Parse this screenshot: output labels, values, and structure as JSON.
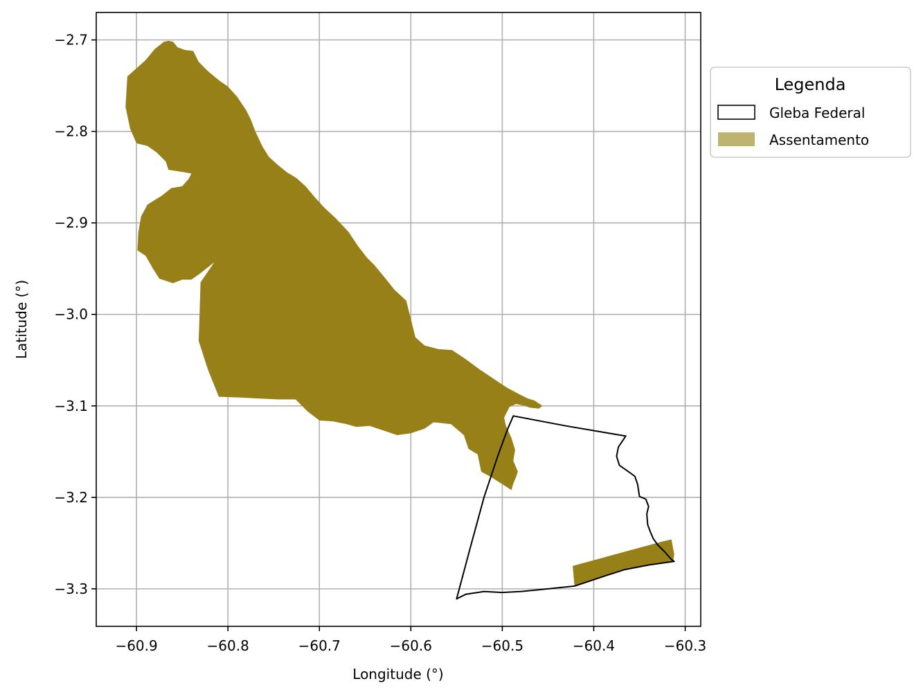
{
  "chart_data": {
    "type": "map",
    "xlabel": "Longitude (°)",
    "ylabel": "Latitude (°)",
    "xlim": [
      -60.944,
      -60.283
    ],
    "ylim": [
      -3.341,
      -2.67
    ],
    "xticks": [
      {
        "value": -60.9,
        "label": "−60.9"
      },
      {
        "value": -60.8,
        "label": "−60.8"
      },
      {
        "value": -60.7,
        "label": "−60.7"
      },
      {
        "value": -60.6,
        "label": "−60.6"
      },
      {
        "value": -60.5,
        "label": "−60.5"
      },
      {
        "value": -60.4,
        "label": "−60.4"
      },
      {
        "value": -60.3,
        "label": "−60.3"
      }
    ],
    "yticks": [
      {
        "value": -2.7,
        "label": "−2.7"
      },
      {
        "value": -2.8,
        "label": "−2.8"
      },
      {
        "value": -2.9,
        "label": "−2.9"
      },
      {
        "value": -3.0,
        "label": "−3.0"
      },
      {
        "value": -3.1,
        "label": "−3.1"
      },
      {
        "value": -3.2,
        "label": "−3.2"
      },
      {
        "value": -3.3,
        "label": "−3.3"
      }
    ],
    "grid": true,
    "legend": {
      "title": "Legenda",
      "placement": "outside-upper-right",
      "entries": [
        {
          "label": "Gleba Federal",
          "style": "outline",
          "color": "#000000"
        },
        {
          "label": "Assentamento",
          "style": "fill",
          "color": "#bfb372"
        }
      ]
    },
    "layers": [
      {
        "name": "Assentamento",
        "color": "#978018",
        "polygons": [
          [
            [
              -60.865,
              -2.701
            ],
            [
              -60.86,
              -2.702
            ],
            [
              -60.855,
              -2.708
            ],
            [
              -60.847,
              -2.711
            ],
            [
              -60.838,
              -2.712
            ],
            [
              -60.832,
              -2.724
            ],
            [
              -60.822,
              -2.734
            ],
            [
              -60.81,
              -2.744
            ],
            [
              -60.8,
              -2.751
            ],
            [
              -60.79,
              -2.762
            ],
            [
              -60.78,
              -2.777
            ],
            [
              -60.775,
              -2.787
            ],
            [
              -60.77,
              -2.8
            ],
            [
              -60.762,
              -2.817
            ],
            [
              -60.755,
              -2.828
            ],
            [
              -60.745,
              -2.837
            ],
            [
              -60.735,
              -2.845
            ],
            [
              -60.725,
              -2.851
            ],
            [
              -60.715,
              -2.86
            ],
            [
              -60.705,
              -2.872
            ],
            [
              -60.695,
              -2.883
            ],
            [
              -60.682,
              -2.895
            ],
            [
              -60.668,
              -2.91
            ],
            [
              -60.658,
              -2.925
            ],
            [
              -60.648,
              -2.938
            ],
            [
              -60.64,
              -2.946
            ],
            [
              -60.63,
              -2.958
            ],
            [
              -60.618,
              -2.973
            ],
            [
              -60.605,
              -2.985
            ],
            [
              -60.6,
              -3.005
            ],
            [
              -60.595,
              -3.025
            ],
            [
              -60.585,
              -3.034
            ],
            [
              -60.57,
              -3.038
            ],
            [
              -60.555,
              -3.039
            ],
            [
              -60.54,
              -3.049
            ],
            [
              -60.525,
              -3.06
            ],
            [
              -60.51,
              -3.07
            ],
            [
              -60.495,
              -3.08
            ],
            [
              -60.482,
              -3.087
            ],
            [
              -60.472,
              -3.092
            ],
            [
              -60.465,
              -3.094
            ],
            [
              -60.456,
              -3.1
            ],
            [
              -60.46,
              -3.103
            ],
            [
              -60.47,
              -3.102
            ],
            [
              -60.475,
              -3.1
            ],
            [
              -60.485,
              -3.098
            ],
            [
              -60.492,
              -3.101
            ],
            [
              -60.498,
              -3.113
            ],
            [
              -60.496,
              -3.122
            ],
            [
              -60.49,
              -3.135
            ],
            [
              -60.486,
              -3.148
            ],
            [
              -60.488,
              -3.16
            ],
            [
              -60.483,
              -3.172
            ],
            [
              -60.485,
              -3.178
            ],
            [
              -60.488,
              -3.185
            ],
            [
              -60.49,
              -3.192
            ],
            [
              -60.501,
              -3.185
            ],
            [
              -60.512,
              -3.178
            ],
            [
              -60.523,
              -3.172
            ],
            [
              -60.527,
              -3.153
            ],
            [
              -60.537,
              -3.147
            ],
            [
              -60.542,
              -3.132
            ],
            [
              -60.556,
              -3.12
            ],
            [
              -60.575,
              -3.118
            ],
            [
              -60.585,
              -3.125
            ],
            [
              -60.6,
              -3.13
            ],
            [
              -60.615,
              -3.132
            ],
            [
              -60.63,
              -3.127
            ],
            [
              -60.645,
              -3.122
            ],
            [
              -60.66,
              -3.123
            ],
            [
              -60.67,
              -3.12
            ],
            [
              -60.685,
              -3.117
            ],
            [
              -60.7,
              -3.116
            ],
            [
              -60.713,
              -3.106
            ],
            [
              -60.726,
              -3.093
            ],
            [
              -60.745,
              -3.093
            ],
            [
              -60.765,
              -3.092
            ],
            [
              -60.785,
              -3.091
            ],
            [
              -60.81,
              -3.09
            ],
            [
              -60.822,
              -3.06
            ],
            [
              -60.832,
              -3.029
            ],
            [
              -60.831,
              -3.0
            ],
            [
              -60.83,
              -2.965
            ],
            [
              -60.815,
              -2.943
            ],
            [
              -60.83,
              -2.955
            ],
            [
              -60.84,
              -2.962
            ],
            [
              -60.85,
              -2.962
            ],
            [
              -60.86,
              -2.966
            ],
            [
              -60.875,
              -2.961
            ],
            [
              -60.882,
              -2.95
            ],
            [
              -60.89,
              -2.936
            ],
            [
              -60.899,
              -2.93
            ],
            [
              -60.898,
              -2.91
            ],
            [
              -60.895,
              -2.893
            ],
            [
              -60.888,
              -2.88
            ],
            [
              -60.872,
              -2.87
            ],
            [
              -60.862,
              -2.862
            ],
            [
              -60.85,
              -2.86
            ],
            [
              -60.843,
              -2.852
            ],
            [
              -60.84,
              -2.846
            ],
            [
              -60.852,
              -2.844
            ],
            [
              -60.865,
              -2.842
            ],
            [
              -60.868,
              -2.833
            ],
            [
              -60.878,
              -2.823
            ],
            [
              -60.888,
              -2.816
            ],
            [
              -60.9,
              -2.813
            ],
            [
              -60.907,
              -2.797
            ],
            [
              -60.912,
              -2.773
            ],
            [
              -60.91,
              -2.74
            ],
            [
              -60.89,
              -2.722
            ],
            [
              -60.88,
              -2.71
            ],
            [
              -60.87,
              -2.702
            ]
          ],
          [
            [
              -60.423,
              -3.275
            ],
            [
              -60.412,
              -3.272
            ],
            [
              -60.39,
              -3.266
            ],
            [
              -60.368,
              -3.26
            ],
            [
              -60.346,
              -3.254
            ],
            [
              -60.324,
              -3.248
            ],
            [
              -60.315,
              -3.246
            ],
            [
              -60.312,
              -3.262
            ],
            [
              -60.313,
              -3.27
            ],
            [
              -60.34,
              -3.274
            ],
            [
              -60.366,
              -3.279
            ],
            [
              -60.385,
              -3.285
            ],
            [
              -60.4,
              -3.29
            ],
            [
              -60.412,
              -3.294
            ],
            [
              -60.421,
              -3.297
            ]
          ]
        ]
      },
      {
        "name": "Gleba Federal",
        "color": "#000000",
        "polygons": [
          [
            [
              -60.488,
              -3.111
            ],
            [
              -60.43,
              -3.122
            ],
            [
              -60.365,
              -3.133
            ],
            [
              -60.373,
              -3.145
            ],
            [
              -60.375,
              -3.155
            ],
            [
              -60.372,
              -3.165
            ],
            [
              -60.362,
              -3.172
            ],
            [
              -60.355,
              -3.177
            ],
            [
              -60.352,
              -3.186
            ],
            [
              -60.35,
              -3.199
            ],
            [
              -60.343,
              -3.202
            ],
            [
              -60.34,
              -3.21
            ],
            [
              -60.342,
              -3.218
            ],
            [
              -60.341,
              -3.23
            ],
            [
              -60.338,
              -3.238
            ],
            [
              -60.335,
              -3.245
            ],
            [
              -60.33,
              -3.252
            ],
            [
              -60.322,
              -3.26
            ],
            [
              -60.315,
              -3.268
            ],
            [
              -60.312,
              -3.27
            ],
            [
              -60.34,
              -3.274
            ],
            [
              -60.366,
              -3.279
            ],
            [
              -60.385,
              -3.285
            ],
            [
              -60.4,
              -3.29
            ],
            [
              -60.421,
              -3.297
            ],
            [
              -60.44,
              -3.299
            ],
            [
              -60.46,
              -3.301
            ],
            [
              -60.48,
              -3.303
            ],
            [
              -60.5,
              -3.304
            ],
            [
              -60.52,
              -3.303
            ],
            [
              -60.54,
              -3.306
            ],
            [
              -60.55,
              -3.311
            ],
            [
              -60.535,
              -3.255
            ],
            [
              -60.52,
              -3.2
            ],
            [
              -60.505,
              -3.155
            ],
            [
              -60.494,
              -3.125
            ]
          ]
        ]
      }
    ]
  }
}
